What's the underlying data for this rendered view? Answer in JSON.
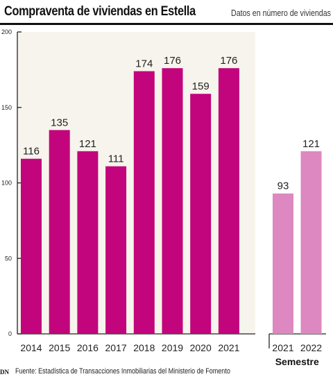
{
  "header": {
    "title": "Compraventa de viviendas en Estella",
    "subtitle": "Datos en número de viviendas"
  },
  "footer": {
    "source": "Fuente: Estadística de Transacciones Inmobiliarias del Ministerio de Fomento",
    "logo_text": "DN"
  },
  "colors": {
    "annual_bar": "#c2057c",
    "semester_bar": "#dd88c0",
    "annual_background": "#f6f4ec",
    "axis": "#222222",
    "text": "#222222"
  },
  "chart_data": {
    "type": "bar",
    "title": "Compraventa de viviendas en Estella",
    "subtitle": "Datos en número de viviendas",
    "xlabel": "",
    "ylabel": "",
    "ylim": [
      0,
      200
    ],
    "yticks": [
      0,
      50,
      100,
      150,
      200
    ],
    "grid": false,
    "groups": [
      {
        "name": "",
        "categories": [
          "2014",
          "2015",
          "2016",
          "2017",
          "2018",
          "2019",
          "2020",
          "2021"
        ],
        "values": [
          116,
          135,
          121,
          111,
          174,
          176,
          159,
          176
        ],
        "color": "#c2057c"
      },
      {
        "name": "Semestre",
        "categories": [
          "2021",
          "2022"
        ],
        "values": [
          93,
          121
        ],
        "color": "#dd88c0"
      }
    ]
  }
}
